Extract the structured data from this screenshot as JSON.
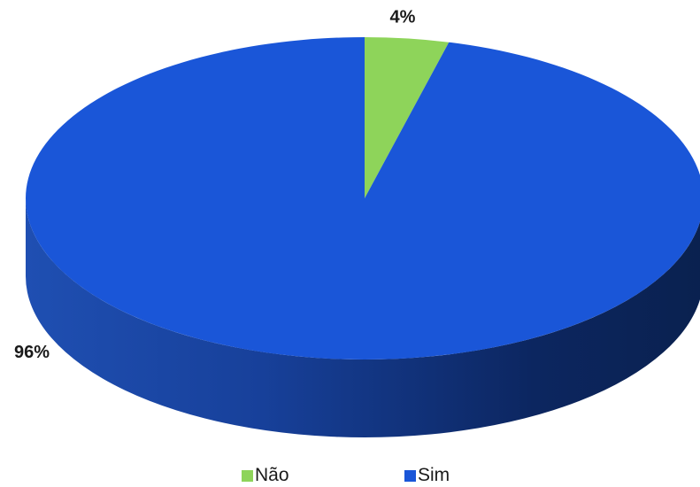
{
  "chart_data": {
    "type": "pie",
    "title": "",
    "categories": [
      "Não",
      "Sim"
    ],
    "values": [
      4,
      96
    ],
    "data_labels": [
      "4%",
      "96%"
    ],
    "colors": [
      "#8ed45a",
      "#1a56d8"
    ],
    "style": "3d",
    "legend_position": "bottom"
  },
  "legend": {
    "items": [
      {
        "label": "Não",
        "color": "#8ed45a"
      },
      {
        "label": "Sim",
        "color": "#1a56d8"
      }
    ]
  }
}
